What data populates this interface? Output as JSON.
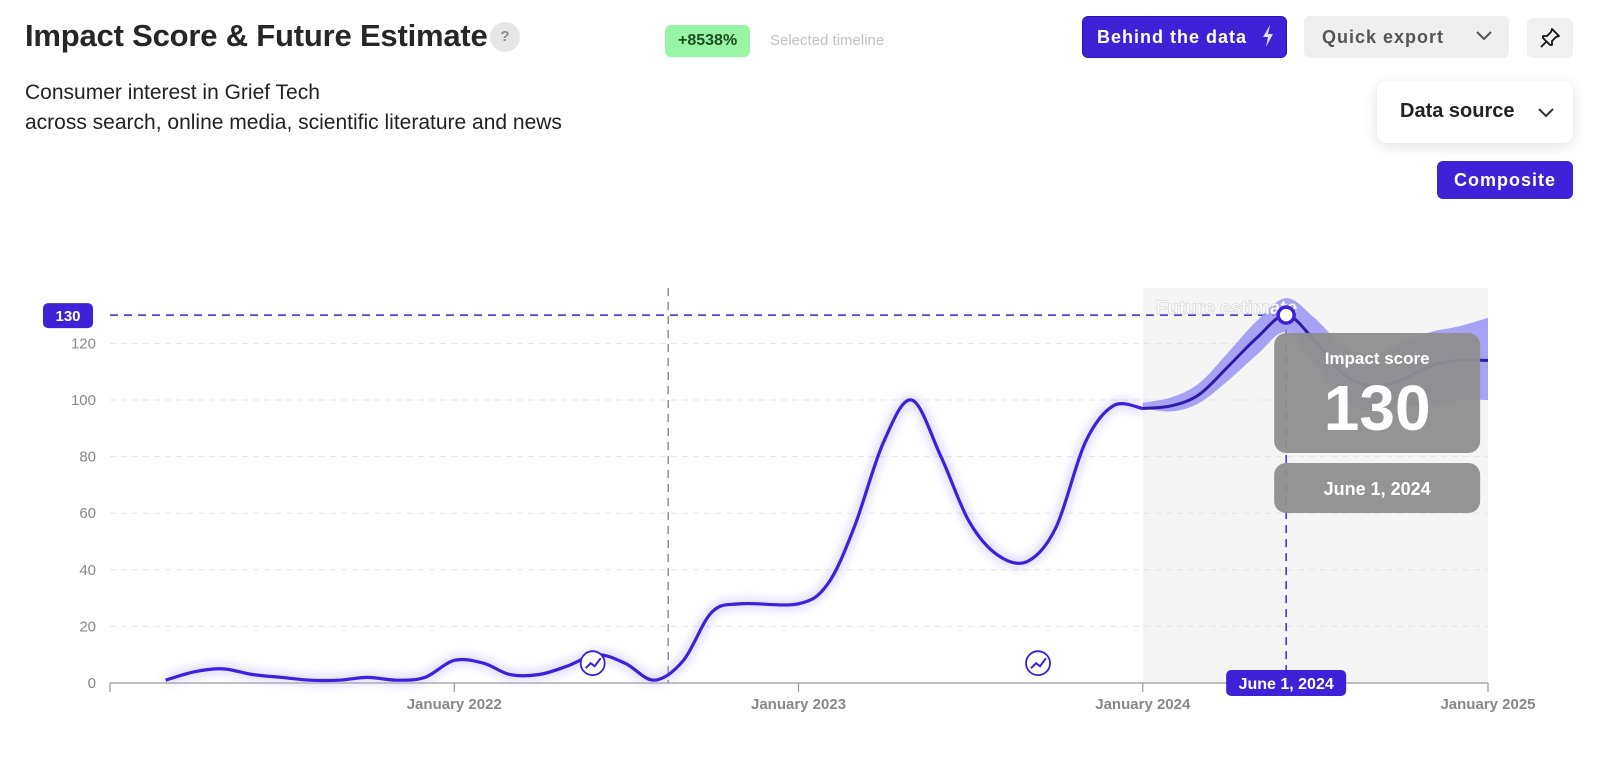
{
  "header": {
    "title": "Impact Score & Future Estimate",
    "help_label": "?",
    "subtitle_line1": "Consumer interest in Grief Tech",
    "subtitle_line2": "across search, online media, scientific literature and news",
    "growth_badge": "+8538%",
    "growth_badge_label": "Selected timeline"
  },
  "toolbar": {
    "behind_label": "Behind the data",
    "export_label": "Quick export",
    "data_source_label": "Data source",
    "composite_label": "Composite"
  },
  "icons": {
    "help": "question-mark-icon",
    "bolt": "lightning-bolt-icon",
    "chevron": "chevron-down-icon",
    "pin": "pin-icon",
    "event_markers": "trend-event-icon"
  },
  "colors": {
    "accent": "#3f22d8",
    "line": "#3d1fdc",
    "forecast_band": "#9a93f5",
    "badge_green": "#98f5a3",
    "tooltip_bg": "#8e8e8e"
  },
  "chart_data": {
    "type": "line",
    "title": "",
    "xlabel": "",
    "ylabel": "Impact score",
    "ylim": [
      0,
      130
    ],
    "yticks": [
      0,
      20,
      40,
      60,
      80,
      100,
      120
    ],
    "xticks": [
      "January 2022",
      "January 2023",
      "January 2024",
      "January 2025"
    ],
    "grid": true,
    "forecast_region_label": "Future estimate",
    "reference_value": 130,
    "selected_divider_date": "2022-08",
    "series": [
      {
        "values_type": "historical",
        "points": [
          [
            "2021-03",
            1
          ],
          [
            "2021-04",
            4
          ],
          [
            "2021-05",
            5
          ],
          [
            "2021-06",
            3
          ],
          [
            "2021-07",
            2
          ],
          [
            "2021-08",
            1
          ],
          [
            "2021-09",
            1
          ],
          [
            "2021-10",
            2
          ],
          [
            "2021-11",
            1
          ],
          [
            "2021-12",
            2
          ],
          [
            "2022-01",
            8
          ],
          [
            "2022-02",
            7
          ],
          [
            "2022-03",
            3
          ],
          [
            "2022-04",
            3
          ],
          [
            "2022-05",
            6
          ],
          [
            "2022-06",
            10
          ],
          [
            "2022-07",
            7
          ],
          [
            "2022-08",
            1
          ],
          [
            "2022-09",
            8
          ],
          [
            "2022-10",
            25
          ],
          [
            "2022-11",
            28
          ],
          [
            "2023-01",
            28
          ],
          [
            "2023-02",
            35
          ],
          [
            "2023-03",
            55
          ],
          [
            "2023-04",
            85
          ],
          [
            "2023-05",
            100
          ],
          [
            "2023-06",
            80
          ],
          [
            "2023-07",
            57
          ],
          [
            "2023-08",
            45
          ],
          [
            "2023-09",
            43
          ],
          [
            "2023-10",
            55
          ],
          [
            "2023-11",
            85
          ],
          [
            "2023-12",
            98
          ],
          [
            "2024-01",
            97
          ]
        ]
      },
      {
        "values_type": "forecast",
        "points": [
          [
            "2024-01",
            97
          ],
          [
            "2024-02",
            98
          ],
          [
            "2024-03",
            102
          ],
          [
            "2024-04",
            112
          ],
          [
            "2024-05",
            122
          ],
          [
            "2024-06",
            130
          ],
          [
            "2024-07",
            121
          ],
          [
            "2024-08",
            109
          ],
          [
            "2024-09",
            105
          ],
          [
            "2024-10",
            107
          ],
          [
            "2024-11",
            112
          ],
          [
            "2024-12",
            114
          ],
          [
            "2025-01",
            114
          ]
        ],
        "upper": [
          99,
          101,
          106,
          117,
          128,
          136,
          129,
          119,
          116,
          120,
          124,
          126,
          129
        ],
        "lower": [
          97,
          96,
          99,
          107,
          116,
          124,
          113,
          100,
          96,
          98,
          98,
          100,
          100
        ]
      }
    ],
    "event_markers": [
      "2022-06",
      "2023-10"
    ],
    "tooltip": {
      "label": "Impact score",
      "value": "130",
      "date": "June 1, 2024",
      "axis_label": "June 1, 2024",
      "reference_label": "130"
    }
  }
}
